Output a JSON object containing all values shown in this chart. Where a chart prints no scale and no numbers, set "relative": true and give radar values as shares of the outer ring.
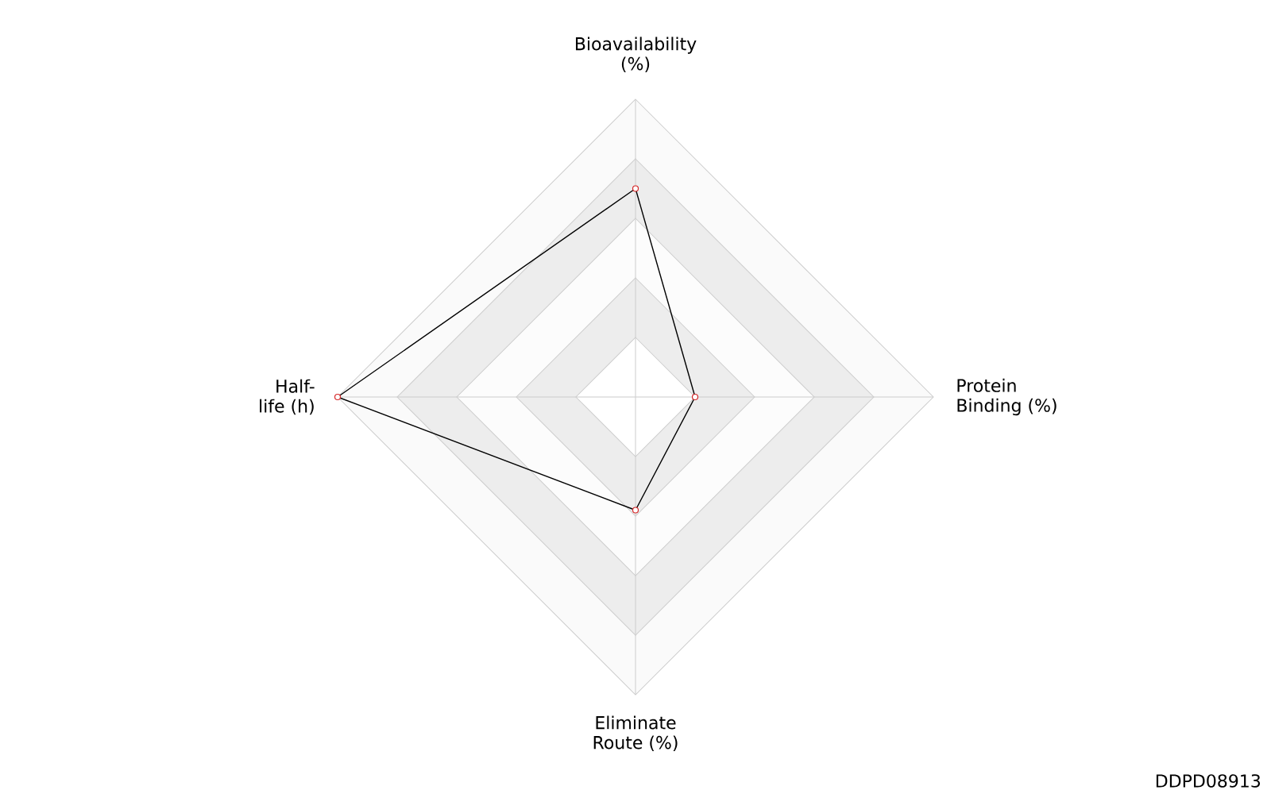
{
  "chart_data": {
    "type": "radar",
    "relative": true,
    "categories": [
      "Bioavailability (%)",
      "Protein Binding (%)",
      "Eliminate Route (%)",
      "Half-life (h)"
    ],
    "series": [
      {
        "color": "#000000",
        "values": [
          0.7,
          0.2,
          0.38,
          1.0
        ]
      }
    ],
    "marker": "circle",
    "annotations": [
      "DDPD08913"
    ]
  }
}
